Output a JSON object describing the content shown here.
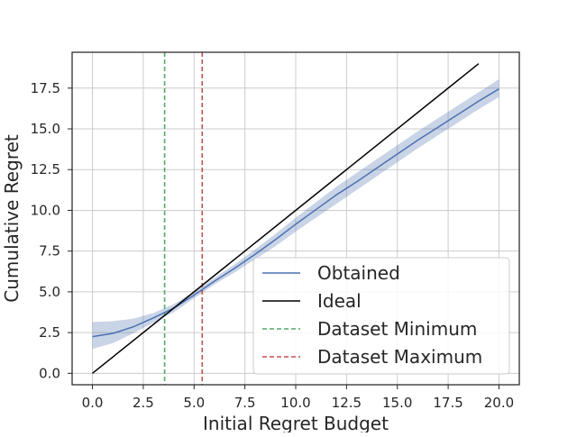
{
  "chart_data": {
    "type": "line",
    "title": "",
    "xlabel": "Initial Regret Budget",
    "ylabel": "Cumulative Regret",
    "xlim": [
      -1.0,
      21.0
    ],
    "ylim": [
      -0.7,
      19.7
    ],
    "x_ticks": [
      0.0,
      2.5,
      5.0,
      7.5,
      10.0,
      12.5,
      15.0,
      17.5,
      20.0
    ],
    "x_tick_labels": [
      "0.0",
      "2.5",
      "5.0",
      "7.5",
      "10.0",
      "12.5",
      "15.0",
      "17.5",
      "20.0"
    ],
    "y_ticks": [
      0.0,
      2.5,
      5.0,
      7.5,
      10.0,
      12.5,
      15.0,
      17.5
    ],
    "y_tick_labels": [
      "0.0",
      "2.5",
      "5.0",
      "7.5",
      "10.0",
      "12.5",
      "15.0",
      "17.5"
    ],
    "grid": true,
    "legend_position": "lower-right",
    "series": [
      {
        "name": "Obtained",
        "style": "solid",
        "color": "#4c72b0",
        "band_color": "#4c72b0",
        "x": [
          0,
          1,
          2,
          3,
          4,
          5,
          6,
          7,
          8,
          9,
          10,
          11,
          12,
          13,
          14,
          15,
          16,
          17,
          18,
          19,
          20
        ],
        "y": [
          2.25,
          2.45,
          2.85,
          3.4,
          4.0,
          4.8,
          5.65,
          6.45,
          7.3,
          8.2,
          9.15,
          10.05,
          10.95,
          11.75,
          12.6,
          13.45,
          14.3,
          15.1,
          15.9,
          16.7,
          17.45
        ],
        "lower": [
          1.5,
          1.85,
          2.45,
          3.1,
          3.75,
          4.6,
          5.45,
          6.2,
          7.0,
          7.8,
          8.7,
          9.55,
          10.4,
          11.25,
          12.1,
          12.95,
          13.8,
          14.6,
          15.4,
          16.2,
          16.95
        ],
        "upper": [
          3.15,
          3.2,
          3.35,
          3.7,
          4.25,
          5.0,
          5.85,
          6.7,
          7.6,
          8.55,
          9.55,
          10.5,
          11.45,
          12.3,
          13.15,
          14.0,
          14.85,
          15.65,
          16.45,
          17.25,
          18.05
        ]
      },
      {
        "name": "Ideal",
        "style": "solid",
        "color": "#000000",
        "x": [
          0,
          19
        ],
        "y": [
          0,
          19
        ]
      },
      {
        "name": "Dataset Minimum",
        "style": "dashed",
        "orientation": "vertical",
        "color": "#55a868",
        "x_value": 3.55
      },
      {
        "name": "Dataset Maximum",
        "style": "dashed",
        "orientation": "vertical",
        "color": "#c44e52",
        "x_value": 5.4
      }
    ]
  }
}
